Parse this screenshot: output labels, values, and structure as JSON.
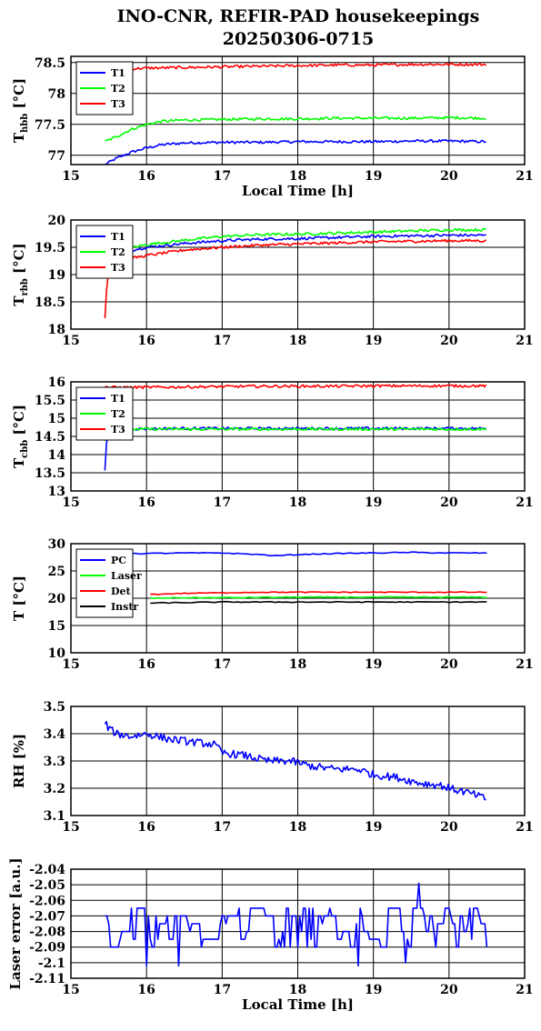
{
  "title": "INO-CNR, REFIR-PAD housekeepings",
  "subtitle": "20250306-0715",
  "chart_data": [
    {
      "type": "line",
      "ylabel_main": "T",
      "ylabel_sub": "hbb",
      "ylabel_unit": " [°C]",
      "xlabel": "Local Time [h]",
      "xlim": [
        15,
        21
      ],
      "ylim": [
        76.85,
        78.6
      ],
      "xticks": [
        "15",
        "16",
        "17",
        "18",
        "19",
        "20",
        "21"
      ],
      "yticks": [
        {
          "v": 77,
          "label": "77"
        },
        {
          "v": 77.5,
          "label": "77.5"
        },
        {
          "v": 78,
          "label": "78"
        },
        {
          "v": 78.5,
          "label": "78.5"
        }
      ],
      "grid": true,
      "legend": "top-left",
      "series": [
        {
          "name": "T1",
          "color": "#0000ff",
          "x": [
            15.45,
            15.6,
            15.8,
            16.0,
            16.2,
            16.5,
            17.0,
            17.5,
            18.0,
            18.5,
            19.0,
            19.5,
            20.0,
            20.5
          ],
          "y": [
            76.85,
            76.95,
            77.05,
            77.12,
            77.17,
            77.2,
            77.21,
            77.21,
            77.22,
            77.22,
            77.22,
            77.23,
            77.23,
            77.22
          ]
        },
        {
          "name": "T2",
          "color": "#00ff00",
          "x": [
            15.45,
            15.6,
            15.8,
            16.0,
            16.2,
            16.5,
            17.0,
            17.5,
            18.0,
            18.5,
            19.0,
            19.5,
            20.0,
            20.5
          ],
          "y": [
            77.22,
            77.3,
            77.42,
            77.5,
            77.55,
            77.57,
            77.58,
            77.59,
            77.59,
            77.6,
            77.6,
            77.6,
            77.61,
            77.6
          ]
        },
        {
          "name": "T3",
          "color": "#ff0000",
          "x": [
            15.45,
            15.5,
            15.6,
            15.8,
            16.0,
            16.5,
            17.0,
            17.5,
            18.0,
            18.5,
            19.0,
            19.5,
            20.0,
            20.5
          ],
          "y": [
            78.42,
            78.33,
            78.38,
            78.4,
            78.41,
            78.42,
            78.43,
            78.44,
            78.45,
            78.46,
            78.46,
            78.47,
            78.47,
            78.47
          ]
        }
      ]
    },
    {
      "type": "line",
      "ylabel_main": "T",
      "ylabel_sub": "rbb",
      "ylabel_unit": " [°C]",
      "xlabel": "",
      "xlim": [
        15,
        21
      ],
      "ylim": [
        18,
        20
      ],
      "xticks": [
        "15",
        "16",
        "17",
        "18",
        "19",
        "20",
        "21"
      ],
      "yticks": [
        {
          "v": 18,
          "label": "18"
        },
        {
          "v": 18.5,
          "label": "18.5"
        },
        {
          "v": 19,
          "label": "19"
        },
        {
          "v": 19.5,
          "label": "19.5"
        },
        {
          "v": 20,
          "label": "20"
        }
      ],
      "grid": true,
      "legend": "top-left",
      "series": [
        {
          "name": "T1",
          "color": "#0000ff",
          "x": [
            15.45,
            15.5,
            15.7,
            16.0,
            16.5,
            17.0,
            17.5,
            18.0,
            18.5,
            19.0,
            19.5,
            20.0,
            20.5
          ],
          "y": [
            19.28,
            19.35,
            19.42,
            19.5,
            19.57,
            19.62,
            19.65,
            19.66,
            19.68,
            19.7,
            19.71,
            19.72,
            19.72
          ]
        },
        {
          "name": "T2",
          "color": "#00ff00",
          "x": [
            15.45,
            15.5,
            15.7,
            16.0,
            16.5,
            17.0,
            17.5,
            18.0,
            18.5,
            19.0,
            19.5,
            20.0,
            20.5
          ],
          "y": [
            19.3,
            19.4,
            19.47,
            19.55,
            19.63,
            19.7,
            19.73,
            19.74,
            19.76,
            19.78,
            19.8,
            19.82,
            19.82
          ]
        },
        {
          "name": "T3",
          "color": "#ff0000",
          "x": [
            15.45,
            15.47,
            15.5,
            15.6,
            15.8,
            16.0,
            16.5,
            17.0,
            17.5,
            18.0,
            18.5,
            19.0,
            19.5,
            20.0,
            20.5
          ],
          "y": [
            18.2,
            18.7,
            19.1,
            19.25,
            19.3,
            19.35,
            19.45,
            19.5,
            19.54,
            19.56,
            19.58,
            19.6,
            19.61,
            19.62,
            19.62
          ]
        }
      ]
    },
    {
      "type": "line",
      "ylabel_main": "T",
      "ylabel_sub": "cbb",
      "ylabel_unit": " [°C]",
      "xlabel": "",
      "xlim": [
        15,
        21
      ],
      "ylim": [
        13,
        16
      ],
      "xticks": [
        "15",
        "16",
        "17",
        "18",
        "19",
        "20",
        "21"
      ],
      "yticks": [
        {
          "v": 13,
          "label": "13"
        },
        {
          "v": 13.5,
          "label": "13.5"
        },
        {
          "v": 14,
          "label": "14"
        },
        {
          "v": 14.5,
          "label": "14.5"
        },
        {
          "v": 15,
          "label": "15"
        },
        {
          "v": 15.5,
          "label": "15.5"
        },
        {
          "v": 16,
          "label": "16"
        }
      ],
      "grid": true,
      "legend": "top-left",
      "series": [
        {
          "name": "T1",
          "color": "#0000ff",
          "x": [
            15.45,
            15.47,
            15.5,
            15.6,
            16.0,
            16.5,
            17.0,
            17.5,
            18.0,
            18.5,
            19.0,
            19.5,
            20.0,
            20.5
          ],
          "y": [
            13.6,
            14.3,
            14.65,
            14.7,
            14.71,
            14.72,
            14.72,
            14.72,
            14.72,
            14.72,
            14.72,
            14.72,
            14.72,
            14.72
          ]
        },
        {
          "name": "T2",
          "color": "#00ff00",
          "x": [
            15.45,
            15.5,
            15.6,
            16.0,
            16.5,
            17.0,
            17.5,
            18.0,
            18.5,
            19.0,
            19.5,
            20.0,
            20.5
          ],
          "y": [
            14.4,
            14.68,
            14.7,
            14.7,
            14.7,
            14.7,
            14.7,
            14.7,
            14.7,
            14.7,
            14.7,
            14.7,
            14.7
          ]
        },
        {
          "name": "T3",
          "color": "#ff0000",
          "x": [
            15.45,
            15.5,
            16.0,
            16.5,
            17.0,
            17.5,
            18.0,
            18.5,
            19.0,
            19.5,
            20.0,
            20.5
          ],
          "y": [
            15.88,
            15.85,
            15.85,
            15.86,
            15.87,
            15.88,
            15.88,
            15.88,
            15.89,
            15.89,
            15.89,
            15.89
          ]
        }
      ]
    },
    {
      "type": "line",
      "ylabel_main": "T [°C]",
      "ylabel_sub": "",
      "ylabel_unit": "",
      "xlabel": "",
      "xlim": [
        15,
        21
      ],
      "ylim": [
        10,
        30
      ],
      "xticks": [
        "15",
        "16",
        "17",
        "18",
        "19",
        "20",
        "21"
      ],
      "yticks": [
        {
          "v": 10,
          "label": "10"
        },
        {
          "v": 15,
          "label": "15"
        },
        {
          "v": 20,
          "label": "20"
        },
        {
          "v": 25,
          "label": "25"
        },
        {
          "v": 30,
          "label": "30"
        }
      ],
      "grid": true,
      "legend": "top-left",
      "series": [
        {
          "name": "PC",
          "color": "#0000ff",
          "x": [
            15.45,
            16.0,
            16.5,
            17.0,
            17.5,
            17.7,
            18.0,
            18.5,
            19.0,
            19.5,
            20.0,
            20.5
          ],
          "y": [
            28.1,
            28.2,
            28.3,
            28.3,
            28.0,
            27.8,
            28.0,
            28.2,
            28.3,
            28.4,
            28.3,
            28.3
          ]
        },
        {
          "name": "Laser",
          "color": "#00ff00",
          "x": [
            16.05,
            16.5,
            17.0,
            18.0,
            19.0,
            20.0,
            20.5
          ],
          "y": [
            20.0,
            20.1,
            20.1,
            20.2,
            20.2,
            20.2,
            20.2
          ]
        },
        {
          "name": "Det",
          "color": "#ff0000",
          "x": [
            16.05,
            16.5,
            17.0,
            17.5,
            18.0,
            19.0,
            20.0,
            20.5
          ],
          "y": [
            20.7,
            20.9,
            21.0,
            21.1,
            21.1,
            21.1,
            21.1,
            21.1
          ]
        },
        {
          "name": "Instr",
          "color": "#000000",
          "x": [
            16.05,
            16.5,
            17.0,
            17.5,
            18.0,
            19.0,
            20.0,
            20.5
          ],
          "y": [
            19.1,
            19.2,
            19.3,
            19.3,
            19.3,
            19.3,
            19.3,
            19.3
          ]
        }
      ]
    },
    {
      "type": "line",
      "ylabel_main": "RH [%]",
      "ylabel_sub": "",
      "ylabel_unit": "",
      "xlabel": "",
      "xlim": [
        15,
        21
      ],
      "ylim": [
        3.1,
        3.5
      ],
      "xticks": [
        "15",
        "16",
        "17",
        "18",
        "19",
        "20",
        "21"
      ],
      "yticks": [
        {
          "v": 3.1,
          "label": "3.1"
        },
        {
          "v": 3.2,
          "label": "3.2"
        },
        {
          "v": 3.3,
          "label": "3.3"
        },
        {
          "v": 3.4,
          "label": "3.4"
        },
        {
          "v": 3.5,
          "label": "3.5"
        }
      ],
      "grid": true,
      "legend": "none",
      "series": [
        {
          "name": "",
          "color": "#0000ff",
          "x": [
            15.45,
            15.5,
            15.6,
            15.8,
            16.0,
            16.3,
            16.6,
            16.9,
            17.0,
            17.3,
            17.6,
            17.9,
            18.2,
            18.5,
            18.8,
            19.0,
            19.3,
            19.6,
            19.9,
            20.0,
            20.3,
            20.5
          ],
          "y": [
            3.44,
            3.42,
            3.4,
            3.39,
            3.4,
            3.38,
            3.37,
            3.36,
            3.33,
            3.32,
            3.3,
            3.3,
            3.28,
            3.27,
            3.27,
            3.25,
            3.24,
            3.22,
            3.21,
            3.2,
            3.18,
            3.16
          ]
        }
      ]
    },
    {
      "type": "line",
      "ylabel_main": "Laser error [a.u.]",
      "ylabel_sub": "",
      "ylabel_unit": "",
      "xlabel": "Local Time [h]",
      "xlim": [
        15,
        21
      ],
      "ylim": [
        -2.11,
        -2.04
      ],
      "xticks": [
        "15",
        "16",
        "17",
        "18",
        "19",
        "20",
        "21"
      ],
      "yticks": [
        {
          "v": -2.11,
          "label": "-2.11"
        },
        {
          "v": -2.1,
          "label": "-2.1"
        },
        {
          "v": -2.09,
          "label": "-2.09"
        },
        {
          "v": -2.08,
          "label": "-2.08"
        },
        {
          "v": -2.07,
          "label": "-2.07"
        },
        {
          "v": -2.06,
          "label": "-2.06"
        },
        {
          "v": -2.05,
          "label": "-2.05"
        },
        {
          "v": -2.04,
          "label": "-2.04"
        }
      ],
      "grid": true,
      "legend": "none",
      "series": [
        {
          "name": "",
          "color": "#0000ff",
          "levels": [
            -2.065,
            -2.07,
            -2.075,
            -2.08,
            -2.085,
            -2.09
          ],
          "spikes_low": [
            {
              "x": 16.0,
              "y": -2.102
            },
            {
              "x": 16.42,
              "y": -2.102
            },
            {
              "x": 18.78,
              "y": -2.102
            },
            {
              "x": 19.42,
              "y": -2.1
            }
          ],
          "spikes_high": [
            {
              "x": 19.58,
              "y": -2.049
            }
          ],
          "x_range": [
            15.45,
            20.5
          ]
        }
      ]
    }
  ]
}
